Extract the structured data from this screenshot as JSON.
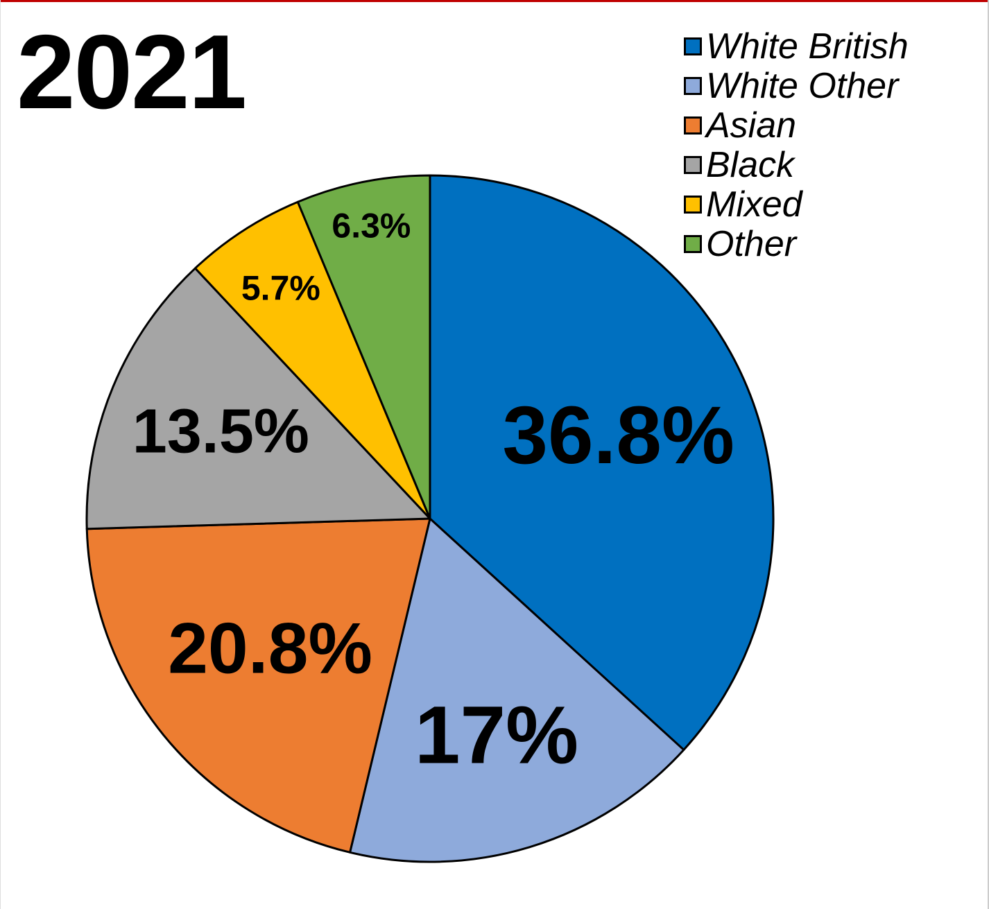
{
  "chart_data": {
    "type": "pie",
    "title": "2021",
    "legend_position": "top-right",
    "slices": [
      {
        "name": "White British",
        "value": 36.8,
        "label": "36.8%",
        "color": "#0070c0"
      },
      {
        "name": "White Other",
        "value": 17,
        "label": "17%",
        "color": "#8eaadb"
      },
      {
        "name": "Asian",
        "value": 20.8,
        "label": "20.8%",
        "color": "#ed7d31"
      },
      {
        "name": "Black",
        "value": 13.5,
        "label": "13.5%",
        "color": "#a5a5a5"
      },
      {
        "name": "Mixed",
        "value": 5.7,
        "label": "5.7%",
        "color": "#ffc000"
      },
      {
        "name": "Other",
        "value": 6.3,
        "label": "6.3%",
        "color": "#70ad47"
      }
    ]
  }
}
